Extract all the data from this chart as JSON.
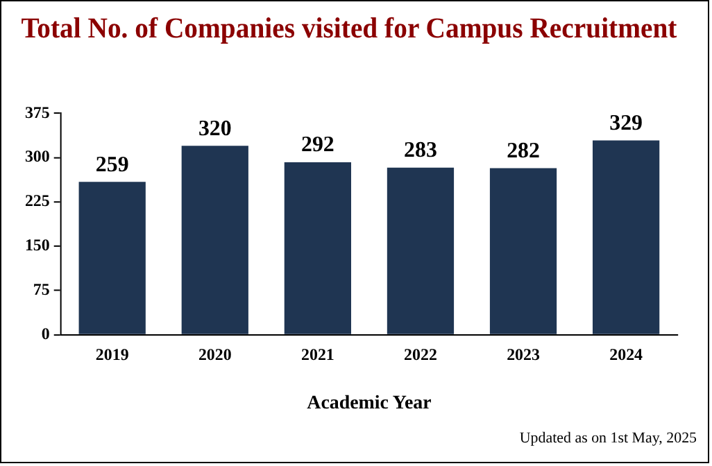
{
  "chart_data": {
    "type": "bar",
    "title": "Total No. of Companies visited for Campus Recruitment",
    "xlabel": "Academic Year",
    "categories": [
      "2019",
      "2020",
      "2021",
      "2022",
      "2023",
      "2024"
    ],
    "values": [
      259,
      320,
      292,
      283,
      282,
      329
    ],
    "color": "#1f3552",
    "ylim": [
      0,
      375
    ],
    "yticks": [
      0,
      75,
      150,
      225,
      300,
      375
    ],
    "grid": false,
    "legend": false,
    "data_labels": true,
    "annotations": [
      "Updated as on 1st May, 2025"
    ]
  }
}
